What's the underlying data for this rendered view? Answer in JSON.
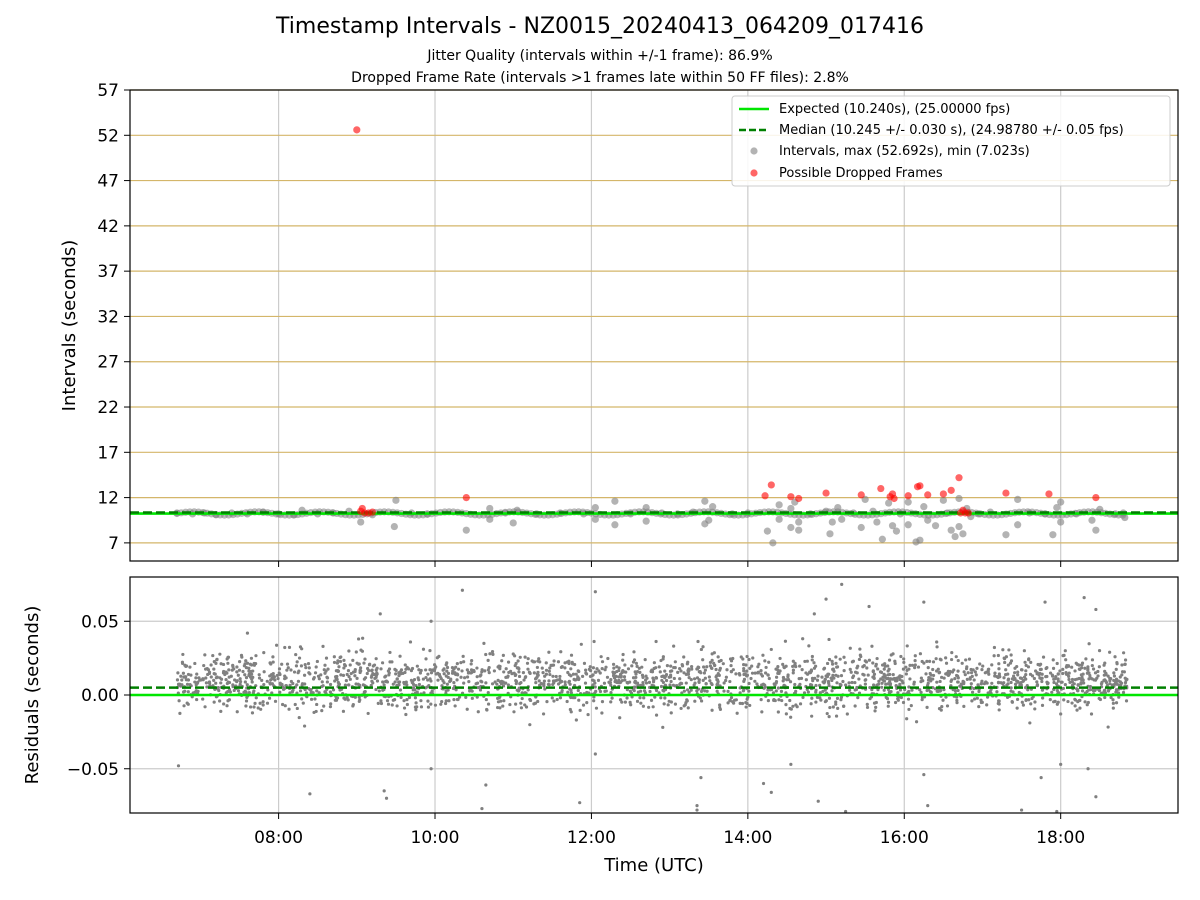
{
  "title": "Timestamp Intervals - NZ0015_20240413_064209_017416",
  "subtitle_jitter": "Jitter Quality (intervals within +/-1 frame): 86.9%",
  "subtitle_dropped": "Dropped Frame Rate (intervals >1 frames late within 50 FF files): 2.8%",
  "colors": {
    "expected": "#00e600",
    "median": "#008000",
    "intervals": "#808080",
    "dropped": "#ff0000",
    "hgrid": "#d4b66a",
    "vgrid": "#cccccc"
  },
  "chart_data": [
    {
      "type": "scatter",
      "ylabel": "Intervals (seconds)",
      "xlim": [
        6.1,
        19.5
      ],
      "ylim": [
        5,
        57
      ],
      "yticks": [
        7,
        12,
        17,
        22,
        27,
        32,
        37,
        42,
        47,
        52,
        57
      ],
      "xticks": [
        8,
        10,
        12,
        14,
        16,
        18
      ],
      "expected_value": 10.24,
      "median_value": 10.245,
      "legend_position": "upper right",
      "legend": [
        "Expected (10.240s), (25.00000 fps)",
        "Median (10.245 +/- 0.030 s), (24.98780 +/- 0.05 fps)",
        "Intervals, max (52.692s), min (7.023s)",
        "Possible Dropped Frames"
      ],
      "intervals": [
        [
          6.7,
          10.3
        ],
        [
          6.9,
          10.2
        ],
        [
          7.05,
          10.3
        ],
        [
          7.2,
          10.1
        ],
        [
          7.4,
          10.3
        ],
        [
          7.6,
          10.2
        ],
        [
          7.8,
          10.4
        ],
        [
          8.0,
          10.2
        ],
        [
          8.2,
          10.1
        ],
        [
          8.3,
          10.6
        ],
        [
          8.5,
          10.2
        ],
        [
          8.7,
          10.3
        ],
        [
          8.9,
          10.5
        ],
        [
          9.05,
          9.3
        ],
        [
          9.2,
          10.1
        ],
        [
          9.5,
          11.7
        ],
        [
          9.48,
          8.8
        ],
        [
          9.7,
          10.3
        ],
        [
          9.9,
          10.2
        ],
        [
          10.4,
          8.4
        ],
        [
          10.7,
          10.8
        ],
        [
          10.7,
          9.6
        ],
        [
          10.9,
          10.3
        ],
        [
          11.0,
          9.2
        ],
        [
          11.05,
          10.6
        ],
        [
          11.3,
          10.2
        ],
        [
          11.6,
          10.3
        ],
        [
          11.9,
          10.2
        ],
        [
          12.05,
          9.6
        ],
        [
          12.05,
          10.9
        ],
        [
          12.3,
          11.6
        ],
        [
          12.3,
          9.0
        ],
        [
          12.5,
          10.2
        ],
        [
          12.7,
          10.9
        ],
        [
          12.7,
          9.4
        ],
        [
          12.9,
          10.3
        ],
        [
          13.1,
          10.2
        ],
        [
          13.3,
          10.4
        ],
        [
          13.45,
          11.6
        ],
        [
          13.45,
          9.1
        ],
        [
          13.5,
          9.5
        ],
        [
          13.55,
          11.0
        ],
        [
          13.8,
          10.2
        ],
        [
          14.0,
          10.3
        ],
        [
          14.25,
          8.3
        ],
        [
          14.32,
          7.0
        ],
        [
          14.4,
          11.2
        ],
        [
          14.4,
          9.6
        ],
        [
          14.55,
          10.8
        ],
        [
          14.55,
          8.7
        ],
        [
          14.6,
          11.5
        ],
        [
          14.65,
          9.3
        ],
        [
          14.65,
          8.4
        ],
        [
          14.8,
          10.2
        ],
        [
          15.0,
          10.5
        ],
        [
          15.05,
          8.0
        ],
        [
          15.08,
          9.3
        ],
        [
          15.15,
          10.9
        ],
        [
          15.2,
          9.6
        ],
        [
          15.35,
          10.3
        ],
        [
          15.45,
          8.7
        ],
        [
          15.5,
          11.8
        ],
        [
          15.6,
          10.5
        ],
        [
          15.65,
          9.3
        ],
        [
          15.72,
          7.4
        ],
        [
          15.8,
          11.4
        ],
        [
          15.85,
          8.9
        ],
        [
          15.9,
          8.3
        ],
        [
          15.95,
          10.2
        ],
        [
          16.05,
          11.5
        ],
        [
          16.05,
          9.0
        ],
        [
          16.15,
          7.1
        ],
        [
          16.2,
          7.3
        ],
        [
          16.25,
          11.0
        ],
        [
          16.3,
          9.5
        ],
        [
          16.4,
          8.9
        ],
        [
          16.5,
          11.7
        ],
        [
          16.55,
          10.3
        ],
        [
          16.6,
          8.4
        ],
        [
          16.65,
          7.7
        ],
        [
          16.7,
          11.9
        ],
        [
          16.7,
          8.8
        ],
        [
          16.75,
          8.0
        ],
        [
          16.8,
          10.8
        ],
        [
          16.85,
          9.9
        ],
        [
          16.95,
          10.2
        ],
        [
          17.1,
          10.4
        ],
        [
          17.3,
          7.9
        ],
        [
          17.45,
          11.8
        ],
        [
          17.45,
          9.0
        ],
        [
          17.6,
          10.3
        ],
        [
          17.8,
          10.2
        ],
        [
          17.9,
          7.9
        ],
        [
          17.95,
          10.9
        ],
        [
          18.0,
          11.5
        ],
        [
          18.0,
          9.3
        ],
        [
          18.2,
          10.2
        ],
        [
          18.4,
          9.5
        ],
        [
          18.45,
          8.4
        ],
        [
          18.5,
          10.7
        ],
        [
          18.7,
          10.2
        ],
        [
          18.8,
          10.3
        ],
        [
          18.82,
          9.8
        ]
      ],
      "dropped": [
        [
          9.0,
          52.6
        ],
        [
          9.05,
          10.5
        ],
        [
          9.07,
          10.8
        ],
        [
          9.1,
          10.3
        ],
        [
          9.15,
          10.3
        ],
        [
          9.2,
          10.4
        ],
        [
          10.4,
          12.0
        ],
        [
          14.22,
          12.2
        ],
        [
          14.3,
          13.4
        ],
        [
          14.55,
          12.1
        ],
        [
          14.65,
          11.9
        ],
        [
          15.0,
          12.5
        ],
        [
          15.45,
          12.3
        ],
        [
          15.7,
          13.0
        ],
        [
          15.82,
          12.1
        ],
        [
          15.85,
          12.4
        ],
        [
          15.87,
          11.9
        ],
        [
          16.05,
          12.2
        ],
        [
          16.17,
          13.2
        ],
        [
          16.2,
          13.3
        ],
        [
          16.3,
          12.3
        ],
        [
          16.5,
          12.4
        ],
        [
          16.6,
          12.8
        ],
        [
          16.7,
          14.2
        ],
        [
          16.72,
          10.3
        ],
        [
          16.75,
          10.6
        ],
        [
          16.78,
          10.3
        ],
        [
          16.82,
          10.3
        ],
        [
          17.3,
          12.5
        ],
        [
          17.85,
          12.4
        ],
        [
          18.45,
          12.0
        ]
      ]
    },
    {
      "type": "scatter",
      "xlabel": "Time (UTC)",
      "ylabel": "Residuals (seconds)",
      "xlim": [
        6.1,
        19.5
      ],
      "ylim": [
        -0.08,
        0.08
      ],
      "yticks": [
        0.05,
        0.0,
        -0.05
      ],
      "ytick_labels": [
        "0.05",
        "0.00",
        "−0.05"
      ],
      "xtick_labels": [
        "08:00",
        "10:00",
        "12:00",
        "14:00",
        "16:00",
        "18:00"
      ],
      "expected_value": 0.0,
      "median_value": 0.005,
      "x_range": [
        6.7,
        18.85
      ],
      "point_count": 2400,
      "band_center": 0.009,
      "band_spread": 0.018,
      "outliers": [
        [
          6.72,
          -0.048
        ],
        [
          8.4,
          -0.067
        ],
        [
          9.3,
          0.055
        ],
        [
          9.35,
          -0.065
        ],
        [
          9.38,
          -0.07
        ],
        [
          9.95,
          0.05
        ],
        [
          9.95,
          -0.05
        ],
        [
          10.35,
          0.071
        ],
        [
          10.6,
          -0.077
        ],
        [
          10.65,
          -0.061
        ],
        [
          11.85,
          -0.073
        ],
        [
          12.05,
          0.07
        ],
        [
          12.05,
          -0.04
        ],
        [
          13.35,
          -0.075
        ],
        [
          13.35,
          -0.078
        ],
        [
          13.4,
          -0.056
        ],
        [
          14.2,
          -0.06
        ],
        [
          14.3,
          -0.066
        ],
        [
          14.55,
          -0.047
        ],
        [
          14.85,
          0.055
        ],
        [
          14.9,
          -0.072
        ],
        [
          15.0,
          0.065
        ],
        [
          15.2,
          0.075
        ],
        [
          15.25,
          -0.079
        ],
        [
          15.55,
          0.06
        ],
        [
          16.25,
          0.063
        ],
        [
          16.25,
          -0.054
        ],
        [
          16.3,
          -0.075
        ],
        [
          17.5,
          -0.078
        ],
        [
          17.8,
          0.063
        ],
        [
          17.75,
          -0.056
        ],
        [
          17.95,
          -0.079
        ],
        [
          18.0,
          -0.047
        ],
        [
          18.3,
          0.066
        ],
        [
          18.35,
          -0.05
        ],
        [
          18.45,
          -0.069
        ],
        [
          18.45,
          0.058
        ]
      ]
    }
  ]
}
